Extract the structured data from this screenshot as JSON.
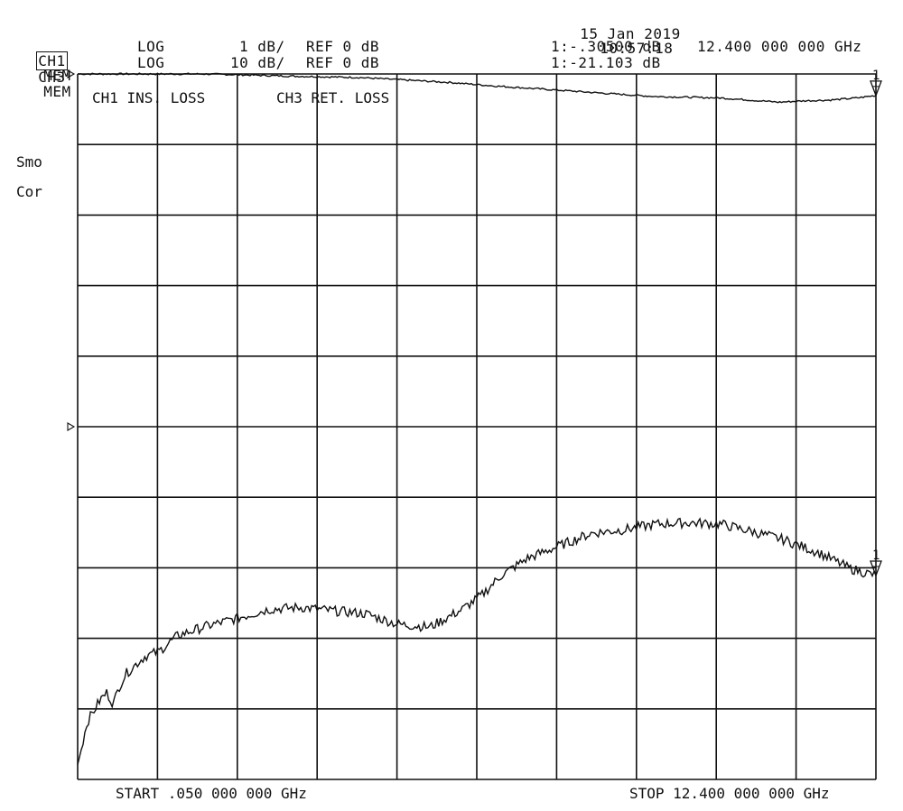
{
  "header": {
    "date": "15 Jan 2019",
    "time": "10:57:18",
    "ch1": {
      "name": "CH1",
      "mode": "MEM",
      "format": "LOG",
      "scale": "1 dB/",
      "ref": "REF 0 dB",
      "marker_value": "1:-.30500 dB",
      "marker_freq": "12.400 000 000 GHz"
    },
    "ch3": {
      "name": "CH3",
      "mode": "MEM",
      "format": "LOG",
      "scale": "10 dB/",
      "ref": "REF 0 dB",
      "marker_value": "1:-21.103 dB"
    }
  },
  "side_labels": {
    "smoothing": "Smo",
    "correction": "Cor"
  },
  "footer": {
    "start": "START .050 000 000 GHz",
    "stop": "STOP 12.400 000 000 GHz"
  },
  "chart_data": {
    "type": "line",
    "title_ch1": "CH1 INS. LOSS",
    "title_ch3": "CH3 RET. LOSS",
    "x_unit": "GHz",
    "xlim": [
      0.05,
      12.4
    ],
    "grid": true,
    "grid_divisions": {
      "x": 10,
      "y": 10
    },
    "marker_label": "1",
    "series": [
      {
        "name": "CH1 INS. LOSS",
        "scale_db_per_div": 1,
        "ref_db": 0,
        "ref_division": 10,
        "ylim": [
          -10,
          0
        ],
        "x": [
          0.05,
          0.6,
          1.3,
          2.0,
          2.5,
          3.3,
          4.4,
          5.0,
          5.8,
          6.5,
          7.5,
          8.3,
          9.0,
          10.0,
          10.9,
          11.3,
          11.7,
          12.1,
          12.4
        ],
        "y": [
          0.0,
          0.0,
          0.0,
          0.0,
          -0.01,
          -0.03,
          -0.05,
          -0.08,
          -0.12,
          -0.17,
          -0.23,
          -0.28,
          -0.32,
          -0.34,
          -0.4,
          -0.38,
          -0.37,
          -0.34,
          -0.305
        ]
      },
      {
        "name": "CH3 RET. LOSS",
        "scale_db_per_div": 10,
        "ref_db": 0,
        "ref_division": 5,
        "ylim": [
          -50,
          50
        ],
        "x": [
          0.05,
          0.2,
          0.4,
          0.5,
          0.6,
          0.7,
          0.8,
          0.95,
          1.1,
          1.3,
          1.6,
          2.0,
          2.5,
          3.0,
          3.5,
          4.0,
          4.5,
          5.0,
          5.5,
          6.0,
          6.3,
          6.6,
          7.0,
          7.5,
          8.0,
          8.5,
          9.0,
          9.5,
          10.0,
          10.5,
          11.0,
          11.5,
          12.0,
          12.4
        ],
        "y": [
          -47.9,
          -41.8,
          -38.7,
          -37.7,
          -39.3,
          -36.7,
          -35.0,
          -33.7,
          -32.5,
          -31.9,
          -29.6,
          -28.4,
          -27.2,
          -25.9,
          -25.6,
          -26.1,
          -26.5,
          -28.0,
          -28.4,
          -25.9,
          -23.9,
          -21.1,
          -18.7,
          -16.9,
          -15.1,
          -14.6,
          -13.8,
          -13.6,
          -13.8,
          -14.9,
          -16.1,
          -17.8,
          -20.1,
          -21.1
        ]
      }
    ]
  }
}
